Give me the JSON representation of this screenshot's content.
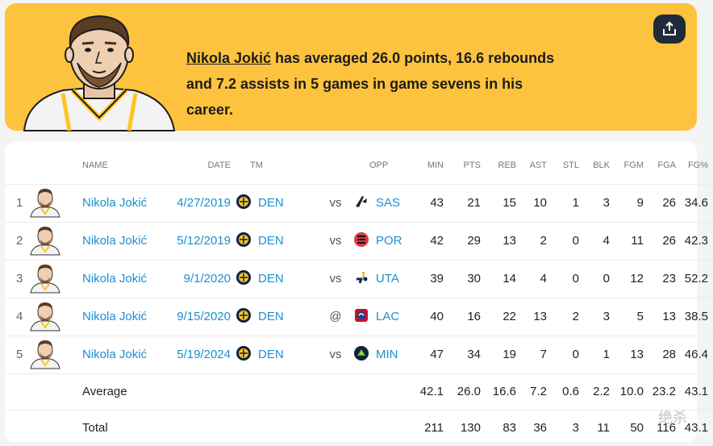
{
  "banner": {
    "player_name": "Nikola Jokić",
    "headline_rest": " has averaged 26.0 points, 16.6 rebounds and 7.2 assists in 5 games in game sevens in his career.",
    "share_icon": "share-icon"
  },
  "columns": [
    "NAME",
    "DATE",
    "TM",
    "OPP",
    "MIN",
    "PTS",
    "REB",
    "AST",
    "STL",
    "BLK",
    "FGM",
    "FGA",
    "FG%"
  ],
  "rows": [
    {
      "rank": "1",
      "name": "Nikola Jokić",
      "date": "4/27/2019",
      "tm": "DEN",
      "vs": "vs",
      "opp": "SAS",
      "opp_logo": "spurs-logo",
      "min": "43",
      "pts": "21",
      "reb": "15",
      "ast": "10",
      "stl": "1",
      "blk": "3",
      "fgm": "9",
      "fga": "26",
      "fgp": "34.6"
    },
    {
      "rank": "2",
      "name": "Nikola Jokić",
      "date": "5/12/2019",
      "tm": "DEN",
      "vs": "vs",
      "opp": "POR",
      "opp_logo": "blazers-logo",
      "min": "42",
      "pts": "29",
      "reb": "13",
      "ast": "2",
      "stl": "0",
      "blk": "4",
      "fgm": "11",
      "fga": "26",
      "fgp": "42.3"
    },
    {
      "rank": "3",
      "name": "Nikola Jokić",
      "date": "9/1/2020",
      "tm": "DEN",
      "vs": "vs",
      "opp": "UTA",
      "opp_logo": "jazz-logo",
      "min": "39",
      "pts": "30",
      "reb": "14",
      "ast": "4",
      "stl": "0",
      "blk": "0",
      "fgm": "12",
      "fga": "23",
      "fgp": "52.2"
    },
    {
      "rank": "4",
      "name": "Nikola Jokić",
      "date": "9/15/2020",
      "tm": "DEN",
      "vs": "@",
      "opp": "LAC",
      "opp_logo": "clippers-logo",
      "min": "40",
      "pts": "16",
      "reb": "22",
      "ast": "13",
      "stl": "2",
      "blk": "3",
      "fgm": "5",
      "fga": "13",
      "fgp": "38.5"
    },
    {
      "rank": "5",
      "name": "Nikola Jokić",
      "date": "5/19/2024",
      "tm": "DEN",
      "vs": "vs",
      "opp": "MIN",
      "opp_logo": "timberwolves-logo",
      "min": "47",
      "pts": "34",
      "reb": "19",
      "ast": "7",
      "stl": "0",
      "blk": "1",
      "fgm": "13",
      "fga": "28",
      "fgp": "46.4"
    }
  ],
  "average": {
    "label": "Average",
    "min": "42.1",
    "pts": "26.0",
    "reb": "16.6",
    "ast": "7.2",
    "stl": "0.6",
    "blk": "2.2",
    "fgm": "10.0",
    "fga": "23.2",
    "fgp": "43.1"
  },
  "total": {
    "label": "Total",
    "min": "211",
    "pts": "130",
    "reb": "83",
    "ast": "36",
    "stl": "3",
    "blk": "11",
    "fgm": "50",
    "fga": "116",
    "fgp": "43.1"
  },
  "watermark": "绝杀",
  "colors": {
    "banner": "#fdc33f",
    "link": "#1a8fd1",
    "share_button": "#1f2b3a",
    "nuggets_gold": "#fec524",
    "nuggets_navy": "#0e2240"
  }
}
